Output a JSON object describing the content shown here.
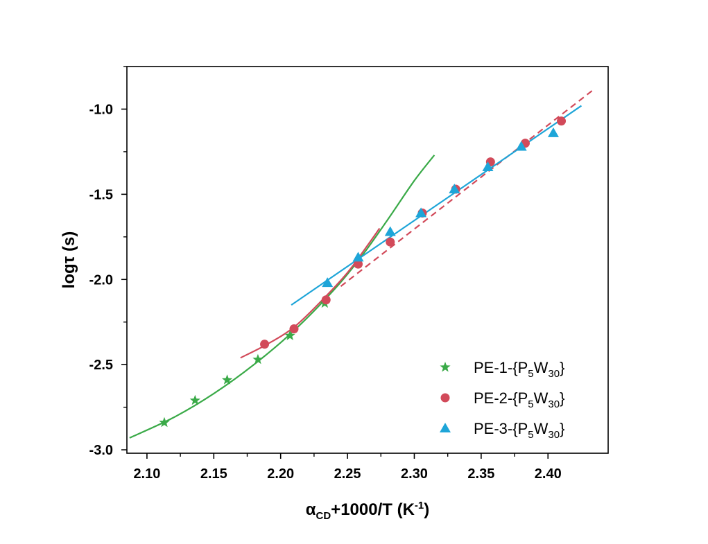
{
  "chart_data": {
    "type": "scatter",
    "xlabel": {
      "main": "α",
      "sub1": "CD",
      "mid": "+1000/T (K",
      "sup": "-1",
      "end": ")"
    },
    "ylabel": "logτ (s)",
    "xlim": [
      2.085,
      2.445
    ],
    "ylim": [
      -3.02,
      -0.75
    ],
    "xticks": [
      2.1,
      2.15,
      2.2,
      2.25,
      2.3,
      2.35,
      2.4
    ],
    "xtick_labels": [
      "2.10",
      "2.15",
      "2.20",
      "2.25",
      "2.30",
      "2.35",
      "2.40"
    ],
    "yticks": [
      -3.0,
      -2.5,
      -2.0,
      -1.5,
      -1.0
    ],
    "ytick_labels": [
      "-3.0",
      "-2.5",
      "-2.0",
      "-1.5",
      "-1.0"
    ],
    "legend_position": "bottom-right",
    "series": [
      {
        "name": "PE-1-{P5W30}",
        "legend": {
          "pre": "PE-1-{P",
          "sub1": "5",
          "mid": "W",
          "sub2": "30",
          "post": "}"
        },
        "marker": "star",
        "color": "#3aaa48",
        "x": [
          2.113,
          2.136,
          2.16,
          2.183,
          2.207,
          2.233
        ],
        "y": [
          -2.84,
          -2.71,
          -2.59,
          -2.47,
          -2.33,
          -2.14
        ],
        "fits": [
          {
            "x": [
              2.087,
              2.12,
              2.15,
              2.18,
              2.21,
              2.24,
              2.26,
              2.28,
              2.3,
              2.315
            ],
            "y": [
              -2.93,
              -2.81,
              -2.67,
              -2.5,
              -2.3,
              -2.06,
              -1.87,
              -1.65,
              -1.42,
              -1.27
            ],
            "dashed": false
          }
        ]
      },
      {
        "name": "PE-2-{P5W30}",
        "legend": {
          "pre": "PE-2-{P",
          "sub1": "5",
          "mid": "W",
          "sub2": "30",
          "post": "}"
        },
        "marker": "circle",
        "color": "#d24a5a",
        "x": [
          2.188,
          2.21,
          2.234,
          2.258,
          2.282,
          2.306,
          2.331,
          2.357,
          2.383,
          2.41
        ],
        "y": [
          -2.38,
          -2.29,
          -2.12,
          -1.91,
          -1.78,
          -1.61,
          -1.47,
          -1.31,
          -1.2,
          -1.07
        ],
        "fits": [
          {
            "x": [
              2.17,
              2.19,
              2.21,
              2.23,
              2.25,
              2.265,
              2.274
            ],
            "y": [
              -2.46,
              -2.38,
              -2.28,
              -2.13,
              -1.96,
              -1.8,
              -1.7
            ],
            "dashed": false
          },
          {
            "x": [
              2.245,
              2.435
            ],
            "y": [
              -2.04,
              -0.88
            ],
            "dashed": true
          }
        ]
      },
      {
        "name": "PE-3-{P5W30}",
        "legend": {
          "pre": "PE-3-{P",
          "sub1": "5",
          "mid": "W",
          "sub2": "30",
          "post": "}"
        },
        "marker": "triangle",
        "color": "#1ea5d8",
        "x": [
          2.235,
          2.258,
          2.282,
          2.305,
          2.33,
          2.355,
          2.38,
          2.404
        ],
        "y": [
          -2.02,
          -1.87,
          -1.72,
          -1.61,
          -1.47,
          -1.34,
          -1.22,
          -1.14
        ],
        "fits": [
          {
            "x": [
              2.208,
              2.425
            ],
            "y": [
              -2.15,
              -0.98
            ],
            "dashed": false
          }
        ]
      }
    ]
  }
}
